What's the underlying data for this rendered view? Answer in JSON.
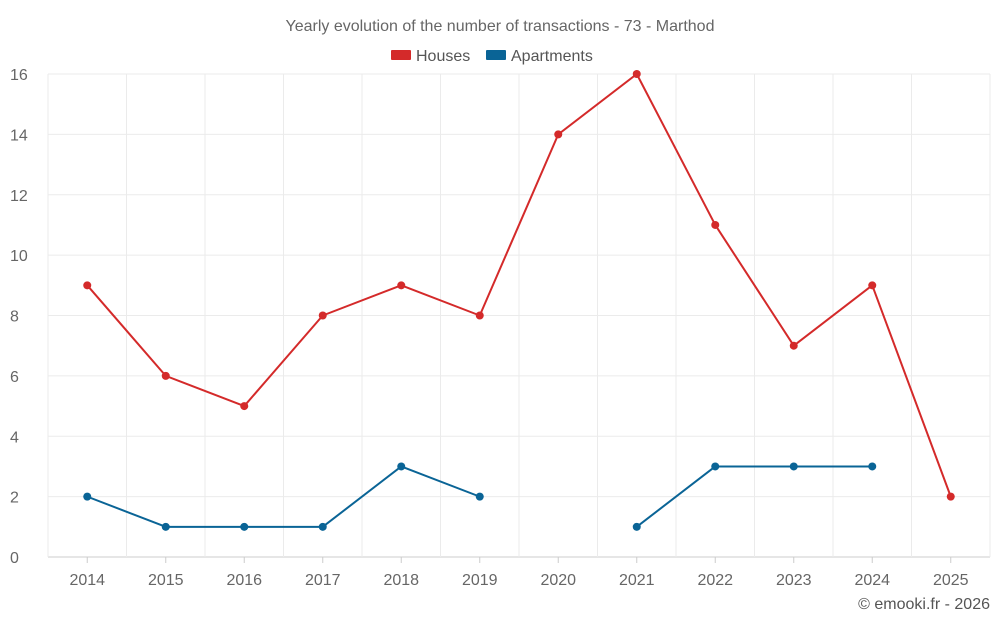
{
  "chart_data": {
    "type": "line",
    "title": "Yearly evolution of the number of transactions - 73 - Marthod",
    "categories": [
      "2014",
      "2015",
      "2016",
      "2017",
      "2018",
      "2019",
      "2020",
      "2021",
      "2022",
      "2023",
      "2024",
      "2025"
    ],
    "series": [
      {
        "name": "Houses",
        "color": "#d42a2a",
        "values": [
          9,
          6,
          5,
          8,
          9,
          8,
          14,
          16,
          11,
          7,
          9,
          2
        ]
      },
      {
        "name": "Apartments",
        "color": "#0a6496",
        "values": [
          2,
          1,
          1,
          1,
          3,
          2,
          null,
          1,
          3,
          3,
          3,
          null
        ]
      }
    ],
    "ylim": [
      0,
      16
    ],
    "yticks": [
      0,
      2,
      4,
      6,
      8,
      10,
      12,
      14,
      16
    ],
    "grid": true,
    "legend_position": "top-center",
    "xlabel": "",
    "ylabel": ""
  },
  "credit": "© emooki.fr - 2026"
}
